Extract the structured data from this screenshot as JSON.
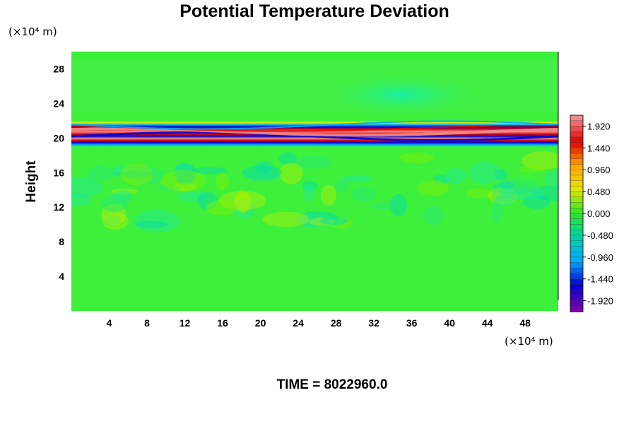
{
  "chart_data": {
    "type": "heatmap",
    "title": "Potential Temperature Deviation",
    "ylabel": "Height",
    "xlabel": "",
    "x_unit": "(×10⁴ m)",
    "y_unit": "(×10⁴ m)",
    "xlim": [
      0,
      51.5
    ],
    "ylim": [
      0,
      30
    ],
    "x_ticks": [
      4,
      8,
      12,
      16,
      20,
      24,
      28,
      32,
      36,
      40,
      44,
      48
    ],
    "y_ticks": [
      4,
      8,
      12,
      16,
      20,
      24,
      28
    ],
    "grid": false,
    "colorbar": {
      "min": -2.16,
      "max": 2.16,
      "labeled_values": [
        1.92,
        1.44,
        0.96,
        0.48,
        0.0,
        -0.48,
        -0.96,
        -1.44,
        -1.92
      ],
      "labels": [
        "1.920",
        "1.440",
        "0.960",
        "0.480",
        "0.000",
        "-0.480",
        "-0.960",
        "-1.440",
        "-1.920"
      ],
      "colors": [
        "#f08c8c",
        "#e00000",
        "#ffa500",
        "#e6e600",
        "#28e628",
        "#00d2aa",
        "#00aaff",
        "#0000d0",
        "#7800b4"
      ]
    },
    "field_description": {
      "background_value": 0.0,
      "strong_band_y": [
        19,
        22
      ],
      "turbulent_band_y": [
        10,
        18
      ],
      "upper_negative_patch": {
        "x": [
          26,
          44
        ],
        "y": [
          23,
          27
        ],
        "value": -0.5
      }
    },
    "footer": "TIME = 8022960.0"
  }
}
